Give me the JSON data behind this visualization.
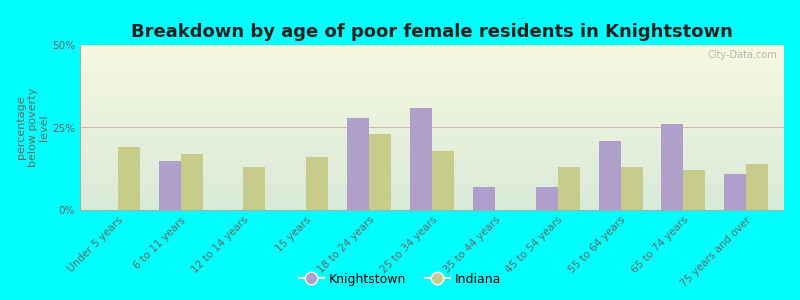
{
  "title": "Breakdown by age of poor female residents in Knightstown",
  "ylabel": "percentage\nbelow poverty\nlevel",
  "categories": [
    "Under 5 years",
    "6 to 11 years",
    "12 to 14 years",
    "15 years",
    "18 to 24 years",
    "25 to 34 years",
    "35 to 44 years",
    "45 to 54 years",
    "55 to 64 years",
    "65 to 74 years",
    "75 years and over"
  ],
  "knightstown": [
    0,
    15,
    0,
    0,
    28,
    31,
    7,
    7,
    21,
    26,
    11
  ],
  "indiana": [
    19,
    17,
    13,
    16,
    23,
    18,
    0,
    13,
    13,
    12,
    14
  ],
  "knightstown_color": "#b09fca",
  "indiana_color": "#c8cc8a",
  "outer_bg_color": "#00ffff",
  "grad_top_color": "#f8f8e0",
  "grad_bot_color": "#d8ead8",
  "ylim": [
    0,
    50
  ],
  "yticks": [
    0,
    25,
    50
  ],
  "ytick_labels": [
    "0%",
    "25%",
    "50%"
  ],
  "bar_width": 0.35,
  "title_fontsize": 13,
  "tick_fontsize": 7.5,
  "ylabel_fontsize": 8,
  "legend_fontsize": 9,
  "watermark": "City-Data.com"
}
